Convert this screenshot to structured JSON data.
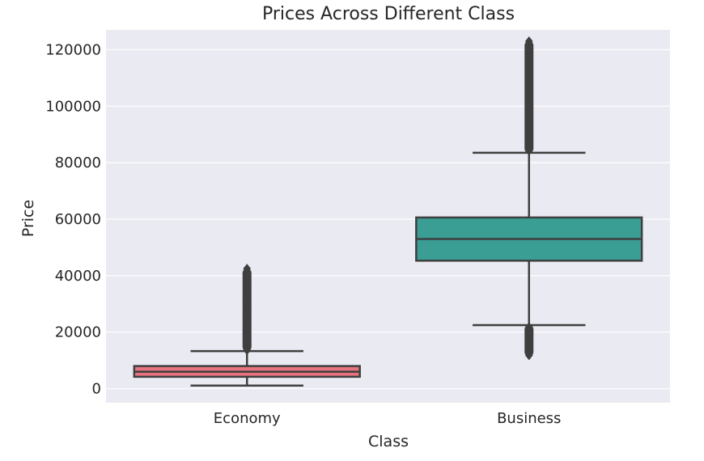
{
  "chart_data": {
    "type": "box",
    "title": "Prices Across Different Class",
    "xlabel": "Class",
    "ylabel": "Price",
    "ylim": [
      -5000,
      127000
    ],
    "yticks": [
      0,
      20000,
      40000,
      60000,
      80000,
      100000,
      120000
    ],
    "ytick_labels": [
      "0",
      "20000",
      "40000",
      "60000",
      "80000",
      "100000",
      "120000"
    ],
    "grid": true,
    "categories": [
      "Economy",
      "Business"
    ],
    "boxes": [
      {
        "name": "Economy",
        "whisker_low": 1100,
        "q1": 4200,
        "median": 6000,
        "q3": 8000,
        "whisker_high": 13300,
        "outlier_range": [
          13300,
          42500
        ],
        "outliers": [
          42500,
          41500,
          40000,
          38500,
          37000,
          35500,
          34000,
          32500,
          31000,
          29500,
          28000,
          26500,
          25000,
          23500,
          22000,
          20500,
          19000,
          17500,
          16000,
          14500,
          13600
        ],
        "color": "#e8727e"
      },
      {
        "name": "Business",
        "whisker_low": 22500,
        "q1": 45300,
        "median": 53000,
        "q3": 60600,
        "whisker_high": 83500,
        "outlier_range_low": [
          11500,
          22500
        ],
        "outlier_range_high": [
          83500,
          123000
        ],
        "outliers": [
          123000,
          117500,
          116000,
          114000,
          112000,
          110000,
          108000,
          106000,
          104000,
          102000,
          100000,
          98000,
          96000,
          94000,
          92000,
          90000,
          88000,
          86000,
          84200,
          21800,
          20500,
          19000,
          17500,
          16000,
          14500,
          13000,
          11800
        ],
        "color": "#3a9e94"
      }
    ]
  }
}
